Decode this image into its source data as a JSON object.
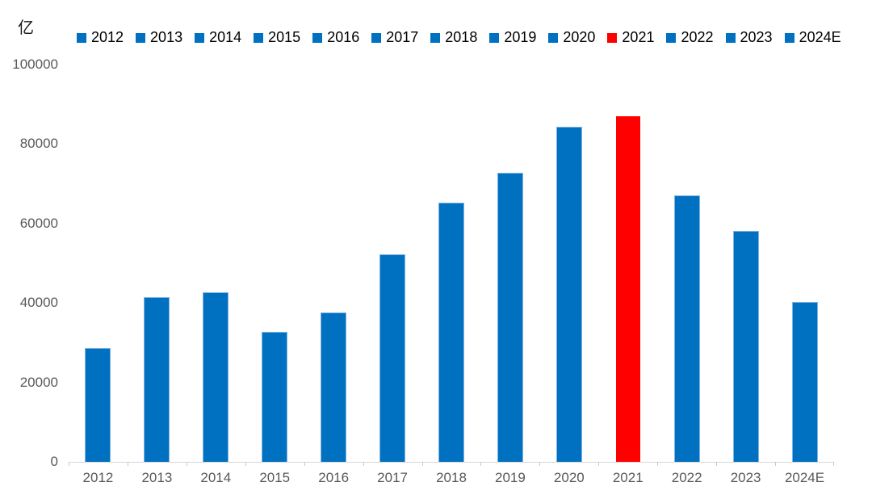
{
  "chart_data": {
    "type": "bar",
    "title": "",
    "unit_label": "亿",
    "categories": [
      "2012",
      "2013",
      "2014",
      "2015",
      "2016",
      "2017",
      "2018",
      "2019",
      "2020",
      "2021",
      "2022",
      "2023",
      "2024E"
    ],
    "values": [
      28500,
      41200,
      42500,
      32500,
      37400,
      52000,
      65000,
      72500,
      84100,
      87000,
      66900,
      58000,
      40000
    ],
    "bar_color": "#0070C0",
    "highlight_category": "2021",
    "highlight_color": "#FF0000",
    "xlabel": "",
    "ylabel": "",
    "ylim": [
      0,
      100000
    ],
    "yticks": [
      0,
      20000,
      40000,
      60000,
      80000,
      100000
    ],
    "grid": "off",
    "legend_position": "top",
    "legend_entries": [
      "2012",
      "2013",
      "2014",
      "2015",
      "2016",
      "2017",
      "2018",
      "2019",
      "2020",
      "2021",
      "2022",
      "2023",
      "2024E"
    ]
  }
}
